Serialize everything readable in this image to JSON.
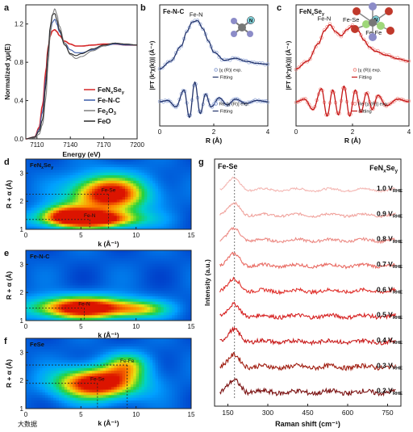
{
  "colors": {
    "FeNxSey": "#d62728",
    "FeNC": "#3b5ba8",
    "Fe2O3": "#7f7f7f",
    "FeO": "#2b2b2b",
    "raman": [
      "#f4b7b3",
      "#f0a29c",
      "#ec8a84",
      "#e96b63",
      "#e0312c",
      "#d61f1f",
      "#c81a1a",
      "#a01d10",
      "#7a1010"
    ]
  },
  "chart_data": [
    {
      "panel_letter": "a",
      "type": "line",
      "xlabel": "Energy (eV)",
      "ylabel": "Normalized χμ(E)",
      "xlim": [
        7100,
        7200
      ],
      "ylim": [
        0,
        1.4
      ],
      "xticks": [
        "7110",
        "7140",
        "7170",
        "7200"
      ],
      "yticks": [
        "0.0",
        "0.4",
        "0.8",
        "1.2"
      ],
      "legend_position": "bottom-right",
      "series": [
        {
          "name": "FeNxSey",
          "legend": {
            "pre": "FeN",
            "sub1": "x",
            "mid": "Se",
            "sub2": "y"
          },
          "color_key": "FeNxSey",
          "x": [
            7100,
            7108,
            7112,
            7115,
            7118,
            7120,
            7122,
            7124,
            7126,
            7128,
            7130,
            7135,
            7140,
            7145,
            7150,
            7160,
            7170,
            7180,
            7190,
            7200
          ],
          "y": [
            0.0,
            0.02,
            0.12,
            0.35,
            0.7,
            0.95,
            1.08,
            1.13,
            1.14,
            1.12,
            1.08,
            1.02,
            0.99,
            0.97,
            0.97,
            0.98,
            0.99,
            0.99,
            0.98,
            0.98
          ]
        },
        {
          "name": "Fe-N-C",
          "legend": {
            "pre": "Fe-N-C"
          },
          "color_key": "FeNC",
          "x": [
            7100,
            7108,
            7112,
            7115,
            7118,
            7120,
            7122,
            7124,
            7126,
            7128,
            7130,
            7135,
            7140,
            7145,
            7150,
            7160,
            7170,
            7180,
            7190,
            7200
          ],
          "y": [
            0.0,
            0.02,
            0.1,
            0.28,
            0.62,
            0.9,
            1.12,
            1.22,
            1.25,
            1.2,
            1.12,
            1.0,
            0.93,
            0.9,
            0.9,
            0.93,
            0.97,
            0.99,
            0.98,
            0.98
          ]
        },
        {
          "name": "Fe2O3",
          "legend": {
            "pre": "Fe",
            "sub1": "2",
            "mid": "O",
            "sub2": "3"
          },
          "color_key": "Fe2O3",
          "x": [
            7100,
            7108,
            7112,
            7115,
            7118,
            7120,
            7122,
            7124,
            7126,
            7128,
            7130,
            7135,
            7140,
            7145,
            7150,
            7160,
            7170,
            7180,
            7190,
            7200
          ],
          "y": [
            0.0,
            0.01,
            0.05,
            0.15,
            0.42,
            0.78,
            1.1,
            1.3,
            1.36,
            1.3,
            1.18,
            1.0,
            0.88,
            0.84,
            0.86,
            0.92,
            0.97,
            1.0,
            0.99,
            0.98
          ]
        },
        {
          "name": "FeO",
          "legend": {
            "pre": "FeO"
          },
          "color_key": "FeO",
          "x": [
            7100,
            7108,
            7112,
            7115,
            7118,
            7120,
            7122,
            7124,
            7126,
            7128,
            7130,
            7135,
            7140,
            7145,
            7150,
            7160,
            7170,
            7180,
            7190,
            7200
          ],
          "y": [
            0.0,
            0.02,
            0.08,
            0.2,
            0.55,
            0.92,
            1.18,
            1.3,
            1.31,
            1.24,
            1.14,
            0.98,
            0.89,
            0.87,
            0.89,
            0.94,
            0.98,
            1.0,
            0.99,
            0.98
          ]
        }
      ]
    },
    {
      "panel_letter": "b",
      "title": "Fe-N-C",
      "type": "line",
      "xlabel": "R (Å)",
      "ylabel": "|FT (k³χ(k))| (Å⁻⁴)",
      "xlim": [
        0,
        4
      ],
      "xticks": [
        "0",
        "2",
        "4"
      ],
      "annotation": "Fe-N",
      "upper": {
        "label_exp": "|χ (R)| exp.",
        "label_fit": "Fitting",
        "x": [
          0,
          0.4,
          0.8,
          1.0,
          1.2,
          1.4,
          1.6,
          1.8,
          2.0,
          2.4,
          2.8,
          3.2,
          3.6,
          4.0
        ],
        "y": [
          0.05,
          0.2,
          0.5,
          0.78,
          0.97,
          1.0,
          0.84,
          0.6,
          0.38,
          0.22,
          0.26,
          0.2,
          0.16,
          0.14
        ]
      },
      "lower": {
        "label_exp": "Re [χ (R)] exp.",
        "label_fit": "Fitting",
        "x": [
          0,
          0.3,
          0.6,
          0.9,
          1.1,
          1.3,
          1.5,
          1.7,
          1.9,
          2.2,
          2.5,
          2.8,
          3.2,
          3.6,
          4.0
        ],
        "y": [
          0,
          0.05,
          -0.2,
          0.45,
          -0.6,
          0.75,
          -0.45,
          0.3,
          -0.2,
          0.15,
          -0.12,
          0.1,
          -0.06,
          0.05,
          0
        ]
      }
    },
    {
      "panel_letter": "c",
      "title": {
        "pre": "FeN",
        "sub1": "x",
        "mid": "Se",
        "sub2": "y"
      },
      "type": "line",
      "xlabel": "R (Å)",
      "ylabel": "|FT (k³χ(k))| (Å⁻⁴)",
      "xlim": [
        0,
        4
      ],
      "xticks": [
        "0",
        "2",
        "4"
      ],
      "annotations": [
        "Fe-N",
        "Fe-Se",
        "Fe-Fe"
      ],
      "upper": {
        "label_exp": "|χ (R)| exp.",
        "label_fit": "Fitting",
        "x": [
          0,
          0.4,
          0.8,
          1.0,
          1.2,
          1.4,
          1.6,
          1.8,
          2.0,
          2.2,
          2.4,
          2.6,
          2.8,
          3.2,
          3.6,
          4.0
        ],
        "y": [
          0.05,
          0.2,
          0.55,
          0.8,
          0.92,
          0.78,
          0.7,
          0.82,
          0.9,
          0.8,
          0.62,
          0.48,
          0.4,
          0.32,
          0.25,
          0.2
        ]
      },
      "lower": {
        "label_exp": "Re [χ (R)] exp.",
        "label_fit": "Fitting",
        "x": [
          0,
          0.3,
          0.6,
          0.9,
          1.1,
          1.3,
          1.5,
          1.7,
          1.9,
          2.1,
          2.3,
          2.5,
          2.7,
          2.9,
          3.2,
          3.6,
          4.0
        ],
        "y": [
          0,
          0.1,
          -0.3,
          0.5,
          -0.55,
          0.45,
          -0.5,
          0.6,
          -0.55,
          0.45,
          -0.4,
          0.35,
          -0.3,
          0.25,
          -0.15,
          0.1,
          0
        ]
      }
    },
    {
      "panel_letter": "d",
      "title": {
        "pre": "FeN",
        "sub1": "x",
        "mid": "Se",
        "sub2": "y"
      },
      "type": "heatmap",
      "xlabel": "k (Å⁻¹)",
      "ylabel": "R + α (Å)",
      "xlim": [
        0,
        15
      ],
      "ylim": [
        1,
        3.5
      ],
      "xticks": [
        "0",
        "5",
        "10",
        "15"
      ],
      "yticks": [
        "1",
        "2",
        "3"
      ],
      "peaks": [
        {
          "label": "Fe-Se",
          "k": 7.5,
          "R": 2.25,
          "amp": 0.95,
          "sk": 2.4,
          "sr": 0.45
        },
        {
          "label": "Fe-N",
          "k": 5.8,
          "R": 1.35,
          "amp": 1.0,
          "sk": 3.0,
          "sr": 0.22
        },
        {
          "label": "",
          "k": 3.5,
          "R": 1.6,
          "amp": 0.45,
          "sk": 1.5,
          "sr": 0.25
        }
      ]
    },
    {
      "panel_letter": "e",
      "title": "Fe-N-C",
      "type": "heatmap",
      "xlabel": "k (Å⁻¹)",
      "ylabel": "R + α (Å)",
      "xlim": [
        0,
        15
      ],
      "ylim": [
        1,
        3.5
      ],
      "xticks": [
        "0",
        "5",
        "10",
        "15"
      ],
      "yticks": [
        "1",
        "2",
        "3"
      ],
      "peaks": [
        {
          "label": "Fe-N",
          "k": 5.3,
          "R": 1.45,
          "amp": 1.0,
          "sk": 3.2,
          "sr": 0.28
        },
        {
          "label": "",
          "k": 10.5,
          "R": 1.4,
          "amp": 0.35,
          "sk": 1.8,
          "sr": 0.2
        }
      ]
    },
    {
      "panel_letter": "f",
      "title": "FeSe",
      "type": "heatmap",
      "xlabel": "k (Å⁻¹)",
      "ylabel": "R + α (Å)",
      "xlim": [
        0,
        15
      ],
      "ylim": [
        1,
        3.5
      ],
      "xticks": [
        "0",
        "5",
        "10",
        "15"
      ],
      "yticks": [
        "1",
        "2",
        "3"
      ],
      "peaks": [
        {
          "label": "Fe-Se",
          "k": 6.5,
          "R": 1.9,
          "amp": 1.0,
          "sk": 2.6,
          "sr": 0.38
        },
        {
          "label": "Fe-Fe",
          "k": 9.2,
          "R": 2.55,
          "amp": 0.45,
          "sk": 1.4,
          "sr": 0.3
        }
      ]
    },
    {
      "panel_letter": "g",
      "title": {
        "pre": "FeN",
        "sub1": "x",
        "mid": "Se",
        "sub2": "y"
      },
      "type": "line",
      "xlabel": "Raman shift (cm⁻¹)",
      "ylabel": "Intensity (a.u.)",
      "xlim": [
        100,
        800
      ],
      "xticks": [
        "150",
        "300",
        "450",
        "600",
        "750"
      ],
      "annotation": "Fe-Se",
      "peak_position": 175,
      "labels": [
        {
          "value": "1.0 V",
          "sub": "RHE"
        },
        {
          "value": "0.9 V",
          "sub": "RHE"
        },
        {
          "value": "0.8 V",
          "sub": "RHE"
        },
        {
          "value": "0.7 V",
          "sub": "RHE"
        },
        {
          "value": "0.6 V",
          "sub": "RHE"
        },
        {
          "value": "0.5 V",
          "sub": "RHE"
        },
        {
          "value": "0.4 V",
          "sub": "RHE"
        },
        {
          "value": "0.3 V",
          "sub": "RHE"
        },
        {
          "value": "0.2 V",
          "sub": "RHE"
        }
      ]
    }
  ],
  "watermark": "大数据"
}
